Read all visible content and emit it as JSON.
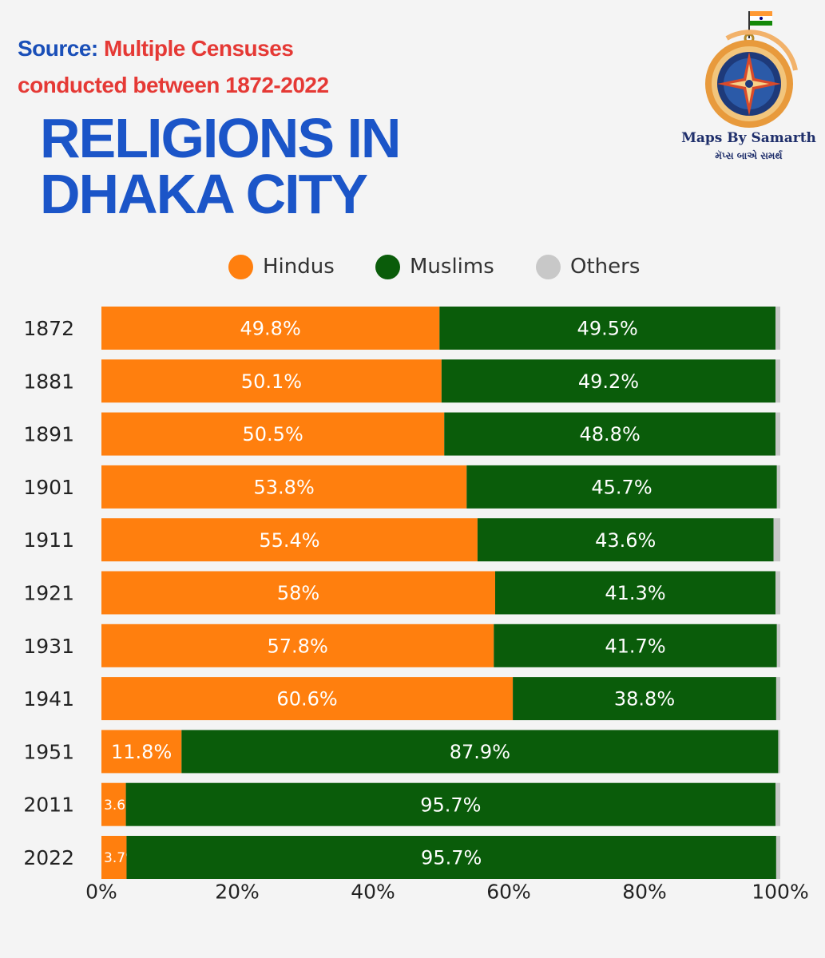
{
  "source": {
    "label": "Source:",
    "value": "Multiple Censuses",
    "value2": "conducted between 1872-2022"
  },
  "title": {
    "line1": "RELIGIONS IN",
    "line2": "DHAKA CITY"
  },
  "logo": {
    "brand": "Maps By Samarth",
    "brand_native": "મૅપ્સ બાએ સમર્થ"
  },
  "colors": {
    "hindus": "#ff7f0e",
    "muslims": "#0a5c0a",
    "others": "#c8c8c8"
  },
  "chart_data": {
    "type": "bar",
    "orientation": "horizontal",
    "stacked": true,
    "categories": [
      "1872",
      "1881",
      "1891",
      "1901",
      "1911",
      "1921",
      "1931",
      "1941",
      "1951",
      "2011",
      "2022"
    ],
    "series": [
      {
        "name": "Hindus",
        "color": "#ff7f0e",
        "values": [
          49.8,
          50.1,
          50.5,
          53.8,
          55.4,
          58,
          57.8,
          60.6,
          11.8,
          3.6,
          3.7
        ],
        "labels": [
          "49.8%",
          "50.1%",
          "50.5%",
          "53.8%",
          "55.4%",
          "58%",
          "57.8%",
          "60.6%",
          "11.8%",
          "3.6%",
          "3.7%"
        ]
      },
      {
        "name": "Muslims",
        "color": "#0a5c0a",
        "values": [
          49.5,
          49.2,
          48.8,
          45.7,
          43.6,
          41.3,
          41.7,
          38.8,
          87.9,
          95.7,
          95.7
        ],
        "labels": [
          "49.5%",
          "49.2%",
          "48.8%",
          "45.7%",
          "43.6%",
          "41.3%",
          "41.7%",
          "38.8%",
          "87.9%",
          "95.7%",
          "95.7%"
        ]
      },
      {
        "name": "Others",
        "color": "#c8c8c8",
        "values": [
          0.7,
          0.7,
          0.7,
          0.5,
          1.0,
          0.7,
          0.5,
          0.6,
          0.3,
          0.7,
          0.6
        ],
        "labels": []
      }
    ],
    "xlim": [
      0,
      100
    ],
    "xticks": [
      "0%",
      "20%",
      "40%",
      "60%",
      "80%",
      "100%"
    ],
    "legend_position": "top",
    "grid": false
  }
}
